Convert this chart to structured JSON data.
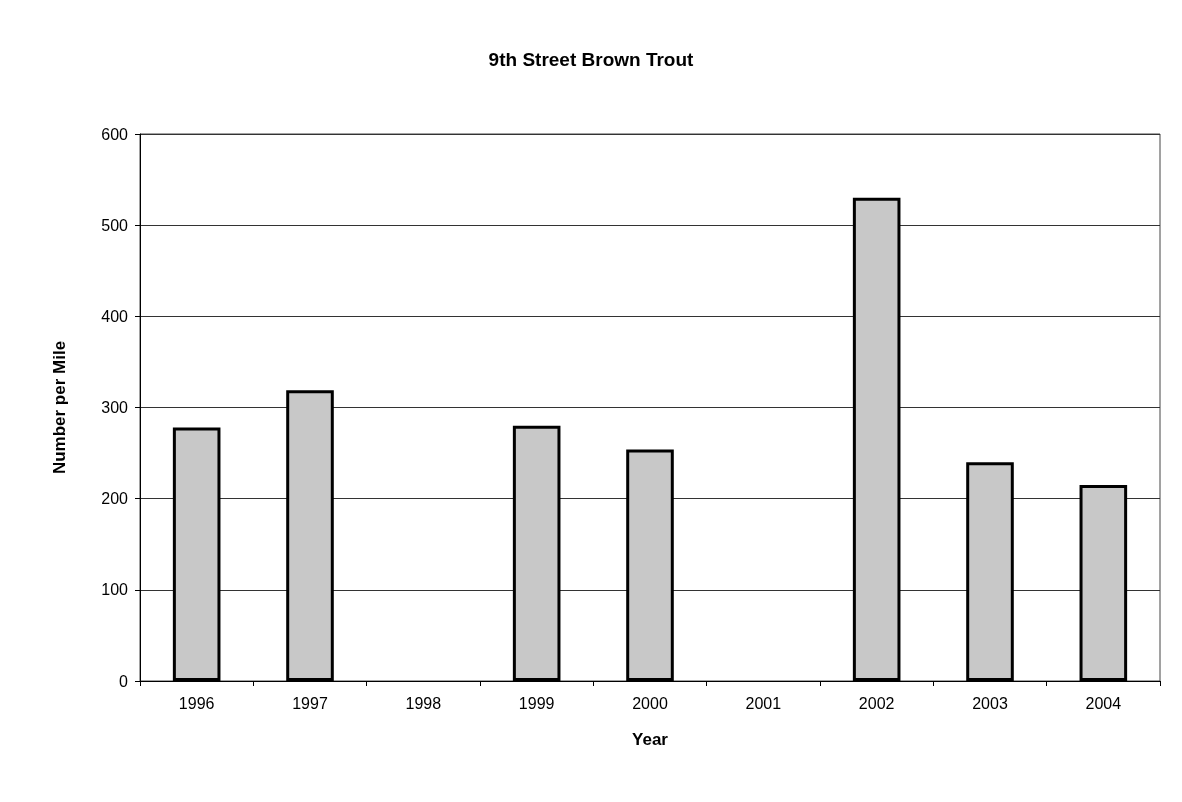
{
  "chart_data": {
    "type": "bar",
    "title": "9th Street Brown Trout",
    "xlabel": "Year",
    "ylabel": "Number per Mile",
    "categories": [
      "1996",
      "1997",
      "1998",
      "1999",
      "2000",
      "2001",
      "2002",
      "2003",
      "2004"
    ],
    "values": [
      278,
      319,
      null,
      280,
      254,
      null,
      530,
      240,
      215
    ],
    "color": "#c8c8c8",
    "ylim": [
      0,
      600
    ],
    "yticks": [
      0,
      100,
      200,
      300,
      400,
      500,
      600
    ],
    "grid": "y"
  }
}
